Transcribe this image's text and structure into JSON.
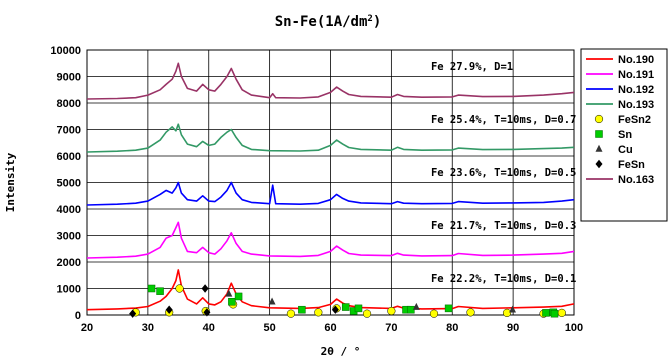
{
  "chart_data": {
    "type": "line",
    "title": "Sn-Fe(1A/dm",
    "title_sup": "2",
    "title_end": ")",
    "xlabel": "2θ / °",
    "ylabel": "Intensity",
    "xlim": [
      20,
      100
    ],
    "ylim": [
      0,
      10000
    ],
    "x_ticks": [
      "20",
      "30",
      "40",
      "50",
      "60",
      "70",
      "80",
      "90",
      "100"
    ],
    "y_ticks": [
      "0",
      "1000",
      "2000",
      "3000",
      "4000",
      "5000",
      "6000",
      "7000",
      "8000",
      "9000",
      "10000"
    ],
    "grid": true,
    "legend_position": "right",
    "annotations": [
      "Fe 27.9%, D=1",
      "Fe 25.4%, T=10ms, D=0.7",
      "Fe 23.6%, T=10ms, D=0.5",
      "Fe 21.7%, T=10ms, D=0.3",
      "Fe 22.2%, T=10ms, D=0.1"
    ],
    "series": [
      {
        "name": "No.190",
        "color": "#ff0000",
        "x": [
          20,
          25,
          28,
          30,
          32,
          33,
          34,
          34.6,
          35,
          35.5,
          36.5,
          38,
          39,
          40,
          41,
          42,
          43,
          43.7,
          44.5,
          45.5,
          47,
          50,
          55,
          58,
          60,
          61,
          62,
          63,
          65,
          70,
          71,
          72,
          75,
          80,
          81,
          85,
          90,
          95,
          98,
          100
        ],
        "y": [
          200,
          230,
          260,
          320,
          520,
          700,
          1000,
          1300,
          1700,
          1100,
          600,
          420,
          650,
          420,
          380,
          500,
          800,
          1200,
          800,
          500,
          350,
          270,
          250,
          280,
          400,
          600,
          450,
          350,
          280,
          250,
          330,
          260,
          230,
          240,
          320,
          250,
          270,
          300,
          330,
          420
        ]
      },
      {
        "name": "No.191",
        "color": "#ff00ff",
        "x": [
          20,
          25,
          28,
          30,
          32,
          33,
          34,
          34.6,
          35,
          35.5,
          36.5,
          38,
          39,
          40,
          41,
          42,
          43,
          43.7,
          44.5,
          45.5,
          47,
          50,
          55,
          58,
          60,
          61,
          62,
          63,
          65,
          70,
          71,
          72,
          75,
          80,
          81,
          85,
          90,
          95,
          98,
          100
        ],
        "y": [
          2150,
          2180,
          2220,
          2300,
          2550,
          2900,
          3000,
          3300,
          3500,
          2900,
          2400,
          2350,
          2550,
          2350,
          2300,
          2500,
          2800,
          3100,
          2700,
          2400,
          2300,
          2230,
          2210,
          2250,
          2400,
          2600,
          2450,
          2320,
          2260,
          2240,
          2330,
          2260,
          2230,
          2240,
          2320,
          2250,
          2260,
          2300,
          2330,
          2400
        ]
      },
      {
        "name": "No.192",
        "color": "#0000ff",
        "x": [
          20,
          25,
          28,
          30,
          32,
          33,
          34,
          34.6,
          35,
          35.5,
          36.5,
          38,
          39,
          40,
          41,
          42,
          43,
          43.7,
          44.5,
          45.5,
          47,
          50,
          50.5,
          51,
          55,
          58,
          60,
          61,
          62,
          63,
          65,
          70,
          71,
          72,
          75,
          80,
          81,
          85,
          90,
          95,
          98,
          100
        ],
        "y": [
          4150,
          4180,
          4220,
          4300,
          4550,
          4700,
          4600,
          4800,
          5000,
          4600,
          4350,
          4300,
          4500,
          4300,
          4280,
          4450,
          4700,
          5000,
          4600,
          4350,
          4250,
          4200,
          4900,
          4200,
          4180,
          4210,
          4350,
          4550,
          4400,
          4300,
          4230,
          4200,
          4280,
          4220,
          4200,
          4210,
          4280,
          4220,
          4230,
          4250,
          4300,
          4350
        ]
      },
      {
        "name": "No.193",
        "color": "#339966",
        "x": [
          20,
          25,
          28,
          30,
          32,
          33,
          34,
          34.6,
          35,
          35.5,
          36.5,
          38,
          39,
          40,
          41,
          42,
          43,
          43.7,
          44.5,
          45.5,
          47,
          50,
          55,
          58,
          60,
          61,
          62,
          63,
          65,
          70,
          71,
          72,
          75,
          80,
          81,
          85,
          90,
          95,
          98,
          100
        ],
        "y": [
          6150,
          6180,
          6220,
          6300,
          6600,
          6900,
          7100,
          6950,
          7200,
          6800,
          6450,
          6350,
          6550,
          6400,
          6450,
          6700,
          6900,
          7000,
          6700,
          6400,
          6250,
          6200,
          6190,
          6220,
          6400,
          6600,
          6450,
          6320,
          6250,
          6220,
          6330,
          6250,
          6220,
          6230,
          6300,
          6240,
          6250,
          6280,
          6300,
          6330
        ]
      },
      {
        "name": "No.163",
        "color": "#993366",
        "x": [
          20,
          25,
          28,
          30,
          32,
          33,
          34,
          34.6,
          35,
          35.5,
          36.5,
          38,
          39,
          40,
          41,
          42,
          43,
          43.7,
          44.5,
          45.5,
          47,
          50,
          50.5,
          51,
          55,
          58,
          60,
          61,
          62,
          63,
          65,
          70,
          71,
          72,
          75,
          80,
          81,
          85,
          90,
          95,
          98,
          100
        ],
        "y": [
          8150,
          8170,
          8200,
          8300,
          8500,
          8700,
          8900,
          9200,
          9500,
          9000,
          8550,
          8450,
          8700,
          8500,
          8450,
          8700,
          9000,
          9300,
          8900,
          8500,
          8300,
          8200,
          8350,
          8200,
          8190,
          8230,
          8400,
          8600,
          8450,
          8320,
          8250,
          8220,
          8320,
          8250,
          8220,
          8230,
          8300,
          8240,
          8250,
          8300,
          8350,
          8400
        ]
      }
    ],
    "markers": [
      {
        "name": "FeSn2",
        "shape": "circle",
        "color": "#ffff00",
        "points": [
          [
            28,
            100
          ],
          [
            33.5,
            100
          ],
          [
            35.2,
            1000
          ],
          [
            39.5,
            150
          ],
          [
            44,
            400
          ],
          [
            53.5,
            50
          ],
          [
            58,
            100
          ],
          [
            61,
            250
          ],
          [
            66,
            50
          ],
          [
            70,
            150
          ],
          [
            77,
            50
          ],
          [
            83,
            100
          ],
          [
            89,
            80
          ],
          [
            95,
            50
          ],
          [
            98,
            80
          ]
        ]
      },
      {
        "name": "Sn",
        "shape": "square",
        "color": "#00cc00",
        "points": [
          [
            30.6,
            1000
          ],
          [
            32,
            900
          ],
          [
            43.8,
            500
          ],
          [
            44.9,
            700
          ],
          [
            55.3,
            200
          ],
          [
            62.5,
            300
          ],
          [
            63.8,
            150
          ],
          [
            64.6,
            250
          ],
          [
            72.4,
            200
          ],
          [
            73.2,
            200
          ],
          [
            79.4,
            250
          ],
          [
            95.4,
            80
          ],
          [
            96.6,
            100
          ],
          [
            96.8,
            50
          ]
        ]
      },
      {
        "name": "Cu",
        "shape": "triangle",
        "color": "#333333",
        "points": [
          [
            43.3,
            800
          ],
          [
            50.4,
            500
          ],
          [
            74.1,
            300
          ],
          [
            89.9,
            200
          ]
        ]
      },
      {
        "name": "FeSn",
        "shape": "diamond",
        "color": "#000000",
        "points": [
          [
            27.5,
            50
          ],
          [
            33.5,
            200
          ],
          [
            39.4,
            1000
          ],
          [
            39.7,
            100
          ],
          [
            60.8,
            200
          ]
        ]
      }
    ]
  }
}
